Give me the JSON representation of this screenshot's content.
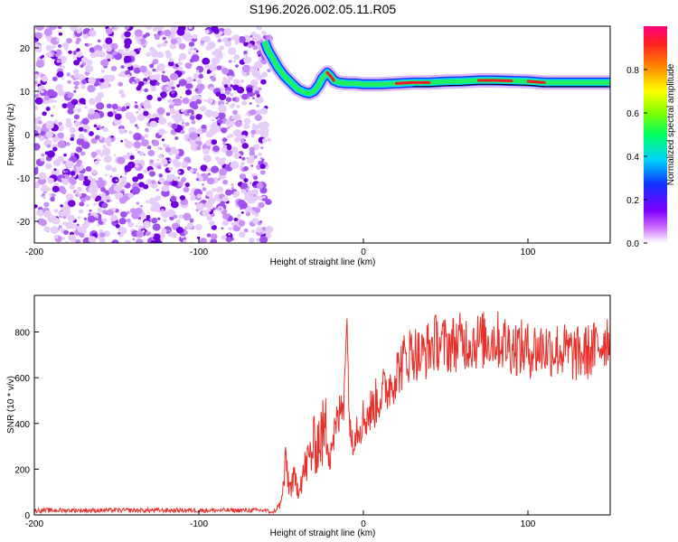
{
  "figure_title": "S196.2026.002.05.11.R05",
  "colors": {
    "spectrogram_noise": "#7a00e0",
    "snr_line": "#e8302a",
    "axis": "#000000"
  },
  "chart_data": [
    {
      "type": "heatmap",
      "name": "spectrogram",
      "xlabel": "Height of straight line (km)",
      "ylabel": "Frequency (Hz)",
      "xlim": [
        -200,
        150
      ],
      "ylim": [
        -25,
        25
      ],
      "xticks": [
        -200,
        -100,
        0,
        100
      ],
      "yticks": [
        -20,
        -10,
        0,
        10,
        20
      ],
      "noise_region_x": [
        -200,
        -57
      ],
      "signal_ridge": {
        "x": [
          -60,
          -58,
          -55,
          -52,
          -48,
          -44,
          -40,
          -36,
          -33,
          -30,
          -27,
          -25,
          -22,
          -20,
          -18,
          -15,
          -10,
          -5,
          0,
          10,
          20,
          30,
          40,
          50,
          60,
          70,
          80,
          90,
          100,
          110,
          120,
          130,
          150
        ],
        "freq": [
          21.5,
          19.5,
          17.5,
          15.5,
          13.5,
          12.0,
          10.5,
          9.8,
          9.5,
          10.0,
          11.5,
          13.0,
          14.3,
          13.5,
          12.5,
          12.0,
          11.8,
          11.8,
          11.6,
          11.6,
          11.8,
          12.0,
          12.0,
          12.2,
          12.3,
          12.5,
          12.5,
          12.4,
          12.3,
          12.0,
          12.0,
          12.0,
          12.0
        ]
      },
      "colorbar": {
        "label": "Normalized spectral amplitude",
        "ticks": [
          0.0,
          0.2,
          0.4,
          0.6,
          0.8
        ],
        "range": [
          0,
          1
        ]
      }
    },
    {
      "type": "line",
      "name": "snr",
      "xlabel": "Height of straight line (km)",
      "ylabel": "SNR (10 * v/v)",
      "xlim": [
        -200,
        150
      ],
      "ylim": [
        0,
        960
      ],
      "xticks": [
        -200,
        -100,
        0,
        100
      ],
      "yticks": [
        0,
        200,
        400,
        600,
        800
      ],
      "series": [
        {
          "name": "SNR",
          "x": [
            -200,
            -150,
            -100,
            -60,
            -55,
            -50,
            -47,
            -45,
            -42,
            -40,
            -35,
            -30,
            -25,
            -22,
            -20,
            -15,
            -12,
            -10,
            -8,
            -5,
            0,
            5,
            10,
            15,
            20,
            25,
            30,
            35,
            40,
            45,
            50,
            60,
            70,
            80,
            90,
            100,
            110,
            120,
            130,
            140,
            150
          ],
          "values": [
            20,
            20,
            20,
            20,
            10,
            50,
            230,
            120,
            150,
            120,
            210,
            300,
            350,
            380,
            300,
            420,
            520,
            820,
            330,
            380,
            420,
            460,
            520,
            560,
            620,
            680,
            720,
            690,
            730,
            760,
            740,
            760,
            760,
            770,
            740,
            720,
            730,
            720,
            700,
            720,
            790
          ]
        }
      ]
    }
  ]
}
